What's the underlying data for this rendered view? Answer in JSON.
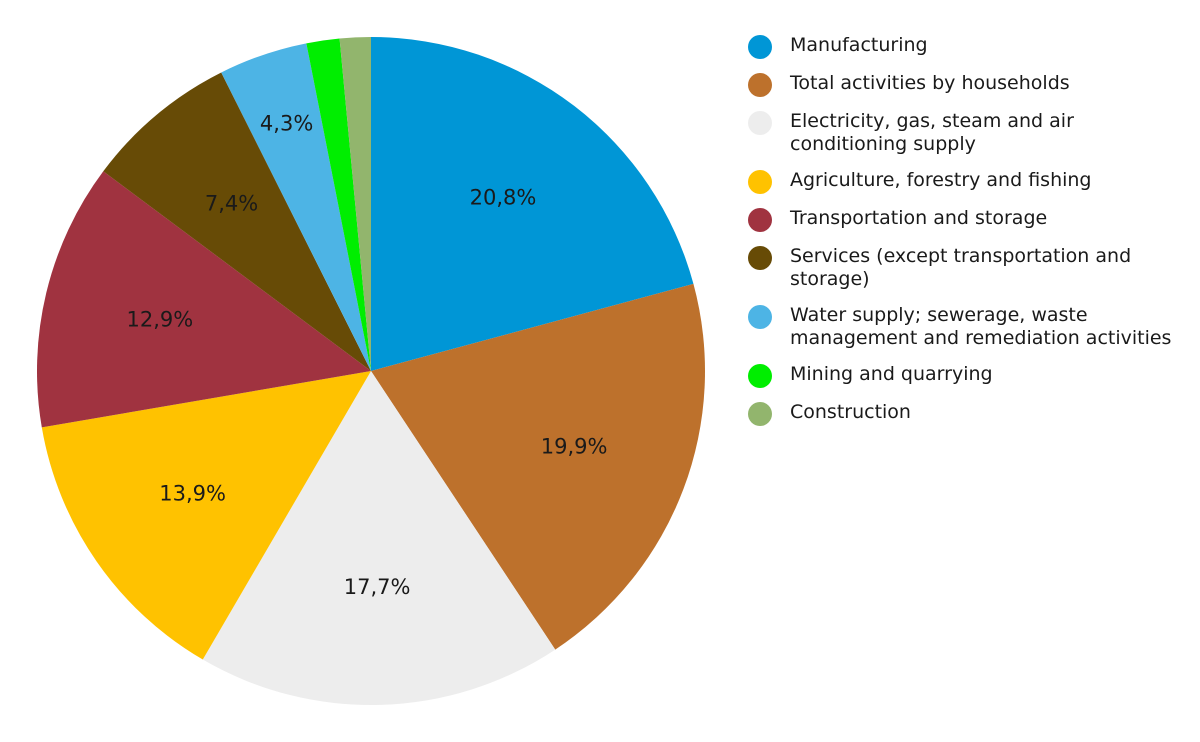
{
  "chart_data": {
    "type": "pie",
    "title": "",
    "legend_position": "right",
    "series": [
      {
        "values": [
          20.8,
          19.9,
          17.7,
          13.9,
          12.9,
          7.4,
          4.3,
          1.6,
          1.5
        ],
        "labels": [
          "20,8%",
          "19,9%",
          "17,7%",
          "13,9%",
          "12,9%",
          "7,4%",
          "4,3%",
          "",
          ""
        ]
      }
    ],
    "categories": [
      "Manufacturing",
      "Total activities by households",
      "Electricity, gas, steam and air conditioning supply",
      "Agriculture, forestry and fishing",
      "Transportation and storage",
      "Services (except transportation and storage)",
      "Water supply; sewerage, waste management and remediation activities",
      "Mining and quarrying",
      "Construction"
    ],
    "colors": [
      "#0096d6",
      "#bd712c",
      "#ededed",
      "#ffc200",
      "#a03340",
      "#674b06",
      "#4db4e5",
      "#00ee00",
      "#92b56d"
    ]
  }
}
